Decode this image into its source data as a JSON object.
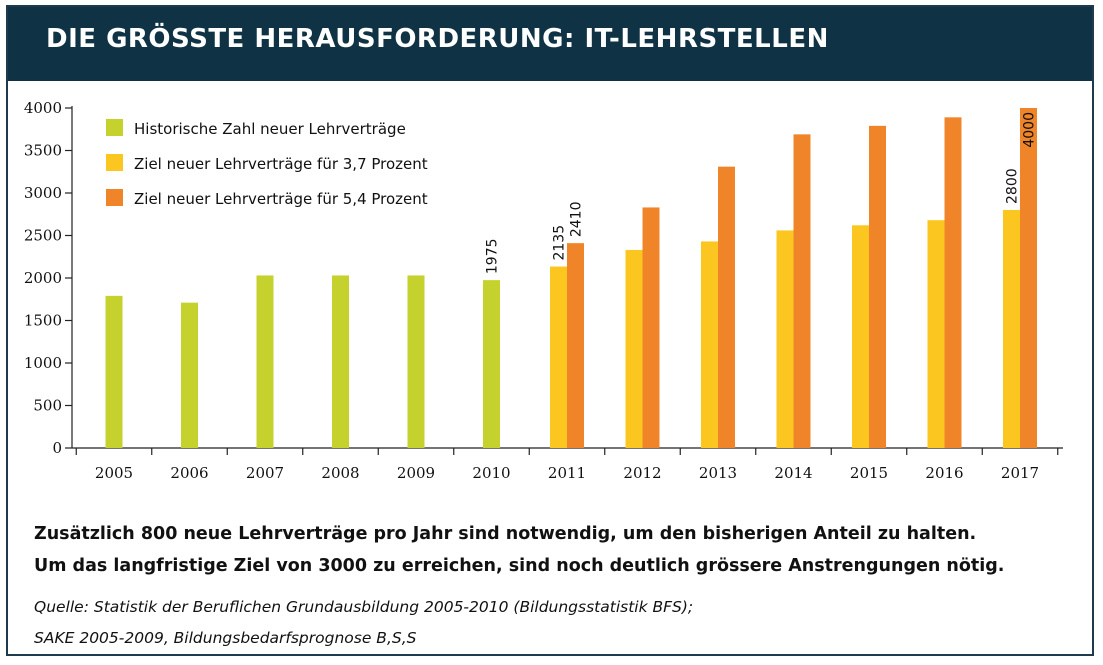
{
  "title": "DIE GRÖSSTE HERAUSFORDERUNG: IT-LEHRSTELLEN",
  "colors": {
    "header_bg": "#0f3344",
    "historical": "#c5d22e",
    "target_37": "#fcc620",
    "target_54": "#ef8428"
  },
  "chart_data": {
    "type": "bar",
    "categories": [
      "2005",
      "2006",
      "2007",
      "2008",
      "2009",
      "2010",
      "2011",
      "2012",
      "2013",
      "2014",
      "2015",
      "2016",
      "2017"
    ],
    "series": [
      {
        "name": "Historische Zahl neuer Lehrverträge",
        "color": "#c5d22e",
        "values": [
          1790,
          1710,
          2030,
          2030,
          2030,
          1975,
          null,
          null,
          null,
          null,
          null,
          null,
          null
        ]
      },
      {
        "name": "Ziel neuer Lehrverträge für 3,7 Prozent",
        "color": "#fcc620",
        "values": [
          null,
          null,
          null,
          null,
          null,
          null,
          2135,
          2330,
          2430,
          2560,
          2620,
          2680,
          2800
        ]
      },
      {
        "name": "Ziel neuer Lehrverträge für 5,4 Prozent",
        "color": "#ef8428",
        "values": [
          null,
          null,
          null,
          null,
          null,
          null,
          2410,
          2830,
          3310,
          3690,
          3790,
          3890,
          4000
        ]
      }
    ],
    "data_labels": [
      {
        "category": "2010",
        "series": 0,
        "text": "1975"
      },
      {
        "category": "2011",
        "series": 1,
        "text": "2135"
      },
      {
        "category": "2011",
        "series": 2,
        "text": "2410"
      },
      {
        "category": "2017",
        "series": 1,
        "text": "2800"
      },
      {
        "category": "2017",
        "series": 2,
        "text": "4000"
      }
    ],
    "y_ticks": [
      0,
      500,
      1000,
      1500,
      2000,
      2500,
      3000,
      3500,
      4000
    ],
    "ylim": [
      0,
      4000
    ],
    "grid": false,
    "legend_position": "top-left"
  },
  "caption": {
    "line1": "Zusätzlich 800 neue Lehrverträge pro Jahr sind notwendig, um den bisherigen Anteil zu halten.",
    "line2": "Um das langfristige Ziel von 3000 zu erreichen, sind noch deutlich grössere Anstrengungen nötig."
  },
  "source": {
    "line1": "Quelle: Statistik der Beruflichen Grundausbildung 2005-2010 (Bildungsstatistik BFS);",
    "line2": "SAKE 2005-2009, Bildungsbedarfsprognose B,S,S"
  }
}
